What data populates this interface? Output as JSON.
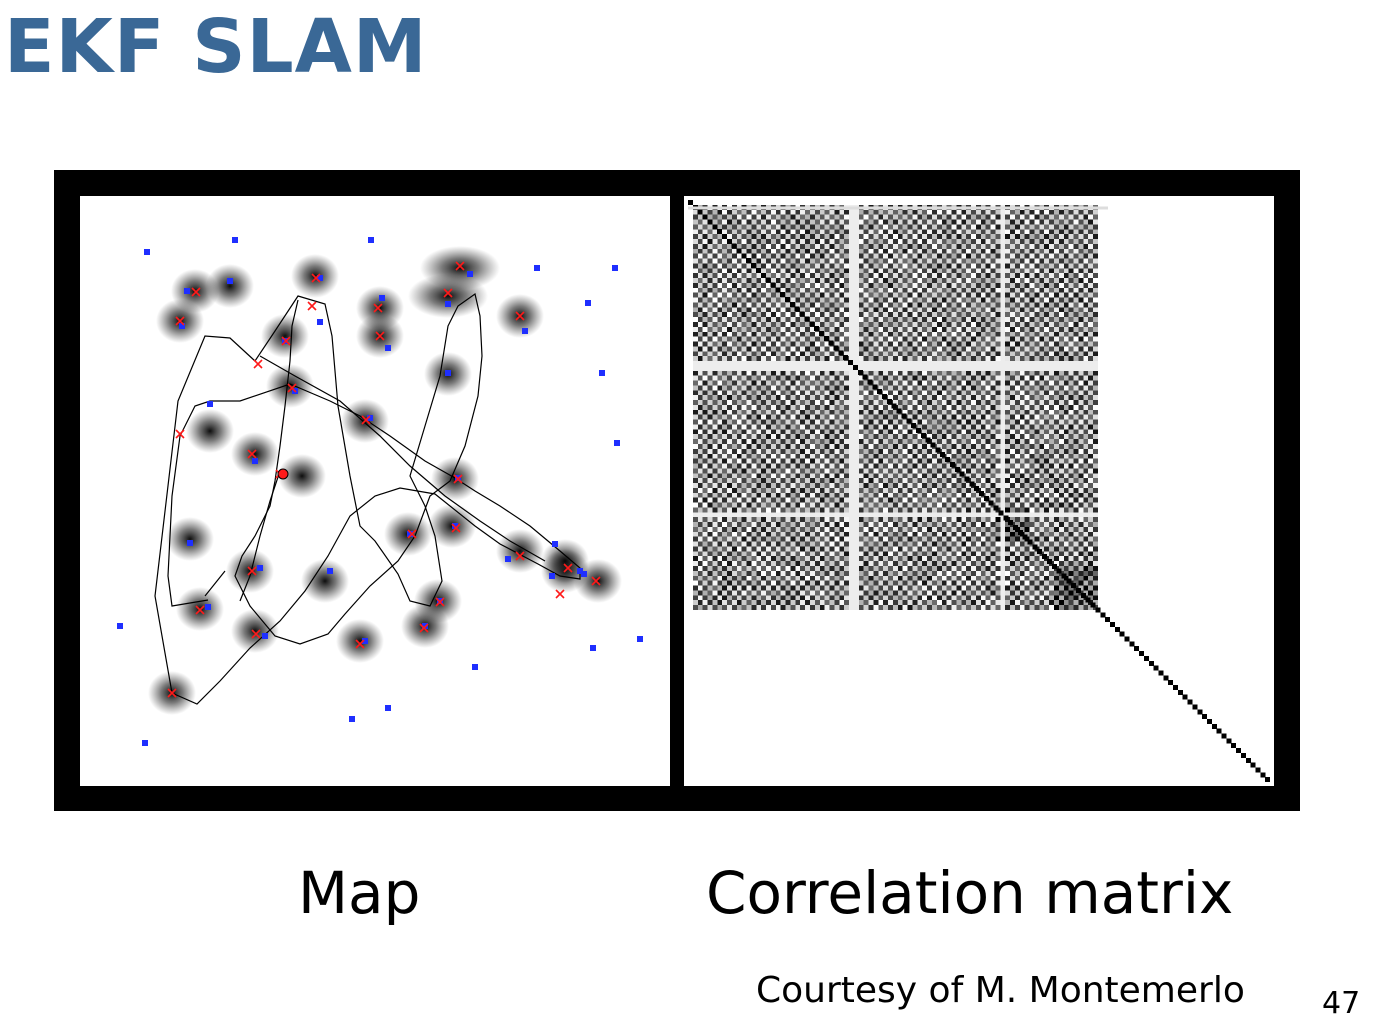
{
  "slide": {
    "title": "EKF SLAM",
    "caption_map": "Map",
    "caption_matrix": "Correlation matrix",
    "credit": "Courtesy of M. Montemerlo",
    "page_number": "47"
  },
  "colors": {
    "title": "#3a6896",
    "landmark_true": "#1f2fff",
    "landmark_estimate": "#ff1a1a",
    "trajectory": "#000000",
    "frame": "#000000"
  }
}
